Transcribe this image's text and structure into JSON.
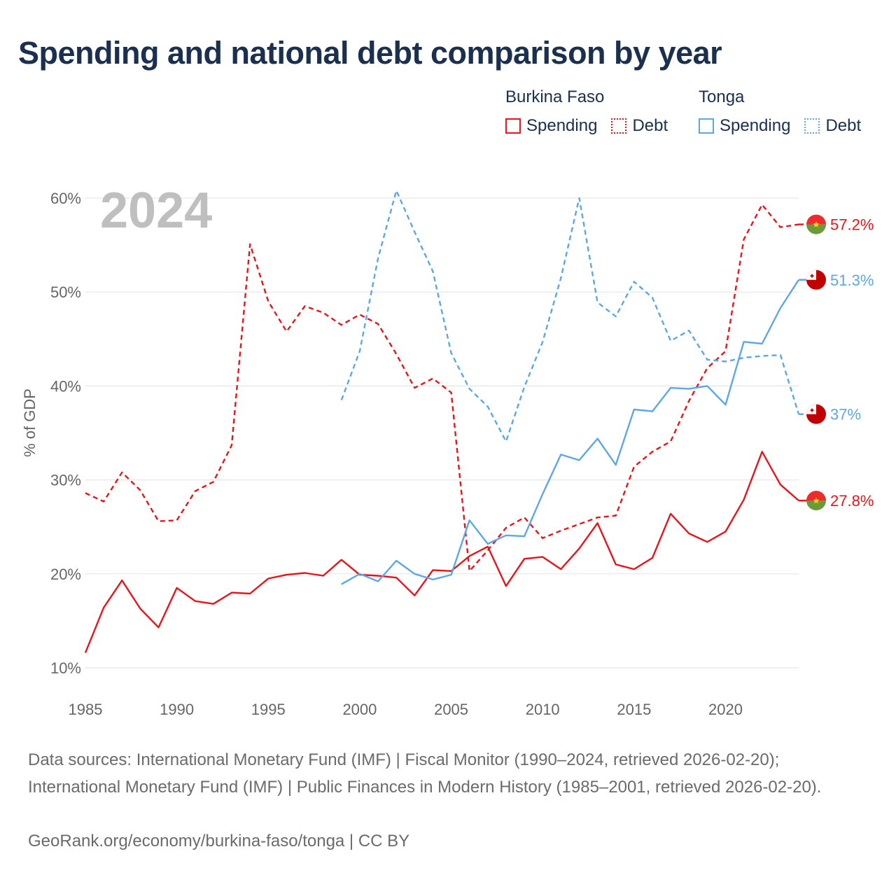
{
  "title": "Spending and national debt comparison by year",
  "legend": {
    "groups": [
      {
        "country": "Burkina Faso",
        "color": "#e8141b",
        "items": [
          {
            "label": "Spending",
            "style": "solid"
          },
          {
            "label": "Debt",
            "style": "dotted"
          }
        ]
      },
      {
        "country": "Tonga",
        "color": "#5ca7e6",
        "items": [
          {
            "label": "Spending",
            "style": "solid"
          },
          {
            "label": "Debt",
            "style": "dotted"
          }
        ]
      }
    ]
  },
  "year_label": "2024",
  "colors": {
    "burkina": "#e8141b",
    "tonga": "#5ca7e6",
    "grid": "#e6e6e6",
    "axis_text": "#666666",
    "year_label": "#bfbfbf"
  },
  "chart_data": {
    "type": "line",
    "title": "Spending and national debt comparison by year",
    "xlabel": "",
    "ylabel": "% of GDP",
    "xlim": [
      1985,
      2024
    ],
    "ylim": [
      10,
      60
    ],
    "x_ticks": [
      1985,
      1990,
      1995,
      2000,
      2005,
      2010,
      2015,
      2020
    ],
    "y_ticks": [
      10,
      20,
      30,
      40,
      50,
      60
    ],
    "y_tick_labels": [
      "10%",
      "20%",
      "30%",
      "40%",
      "50%",
      "60%"
    ],
    "grid": true,
    "series": [
      {
        "name": "Burkina Faso Spending",
        "country": "Burkina Faso",
        "dash": false,
        "end_label": "27.8%",
        "x": [
          1985,
          1986,
          1987,
          1988,
          1989,
          1990,
          1991,
          1992,
          1993,
          1994,
          1995,
          1996,
          1997,
          1998,
          1999,
          2000,
          2001,
          2002,
          2003,
          2004,
          2005,
          2006,
          2007,
          2008,
          2009,
          2010,
          2011,
          2012,
          2013,
          2014,
          2015,
          2016,
          2017,
          2018,
          2019,
          2020,
          2021,
          2022,
          2023,
          2024
        ],
        "y": [
          11.6,
          16.4,
          19.3,
          16.3,
          14.3,
          18.5,
          17.1,
          16.8,
          18.0,
          17.9,
          19.5,
          19.9,
          20.1,
          19.8,
          21.5,
          19.9,
          19.8,
          19.6,
          17.7,
          20.4,
          20.3,
          21.9,
          22.9,
          18.7,
          21.6,
          21.8,
          20.5,
          22.7,
          25.4,
          21.0,
          20.5,
          21.7,
          26.4,
          24.3,
          23.4,
          24.5,
          27.9,
          33.0,
          29.5,
          27.8
        ]
      },
      {
        "name": "Burkina Faso Debt",
        "country": "Burkina Faso",
        "dash": true,
        "end_label": "57.2%",
        "x": [
          1985,
          1986,
          1987,
          1988,
          1989,
          1990,
          1991,
          1992,
          1993,
          1994,
          1995,
          1996,
          1997,
          1998,
          1999,
          2000,
          2001,
          2002,
          2003,
          2004,
          2005,
          2006,
          2007,
          2008,
          2009,
          2010,
          2011,
          2012,
          2013,
          2014,
          2015,
          2016,
          2017,
          2018,
          2019,
          2020,
          2021,
          2022,
          2023,
          2024
        ],
        "y": [
          28.6,
          27.7,
          30.8,
          28.9,
          25.6,
          25.7,
          28.8,
          29.8,
          33.7,
          55.1,
          49.0,
          45.8,
          48.5,
          47.8,
          46.5,
          47.6,
          46.6,
          43.4,
          39.8,
          40.8,
          39.3,
          20.3,
          22.5,
          24.9,
          26.0,
          23.8,
          24.6,
          25.3,
          26.0,
          26.2,
          31.4,
          33.0,
          34.1,
          38.4,
          41.9,
          43.7,
          55.6,
          59.3,
          56.9,
          57.2
        ]
      },
      {
        "name": "Tonga Spending",
        "country": "Tonga",
        "dash": false,
        "end_label": "51.3%",
        "x": [
          1999,
          2000,
          2001,
          2002,
          2003,
          2004,
          2005,
          2006,
          2007,
          2008,
          2009,
          2010,
          2011,
          2012,
          2013,
          2014,
          2015,
          2016,
          2017,
          2018,
          2019,
          2020,
          2021,
          2022,
          2023,
          2024
        ],
        "y": [
          18.9,
          20.0,
          19.2,
          21.4,
          20.0,
          19.4,
          19.9,
          25.7,
          23.2,
          24.1,
          24.0,
          28.5,
          32.7,
          32.1,
          34.4,
          31.6,
          37.5,
          37.3,
          39.8,
          39.7,
          40.0,
          38.0,
          44.7,
          44.5,
          48.3,
          51.3
        ]
      },
      {
        "name": "Tonga Debt",
        "country": "Tonga",
        "dash": true,
        "end_label": "37%",
        "x": [
          1999,
          2000,
          2001,
          2002,
          2003,
          2004,
          2005,
          2006,
          2007,
          2008,
          2009,
          2010,
          2011,
          2012,
          2013,
          2014,
          2015,
          2016,
          2017,
          2018,
          2019,
          2020,
          2021,
          2022,
          2023,
          2024
        ],
        "y": [
          38.5,
          43.7,
          53.6,
          60.8,
          56.4,
          52.2,
          43.5,
          39.7,
          37.8,
          34.1,
          39.9,
          44.7,
          51.5,
          60.0,
          48.9,
          47.4,
          51.1,
          49.4,
          44.8,
          45.9,
          42.8,
          42.6,
          43.0,
          43.2,
          43.3,
          37.0
        ]
      }
    ]
  },
  "sources": "Data sources: International Monetary Fund (IMF) | Fiscal Monitor (1990–2024, retrieved 2026-02-20); International Monetary Fund (IMF) | Public Finances in Modern History (1985–2001, retrieved 2026-02-20).",
  "footer": "GeoRank.org/economy/burkina-faso/tonga | CC BY"
}
